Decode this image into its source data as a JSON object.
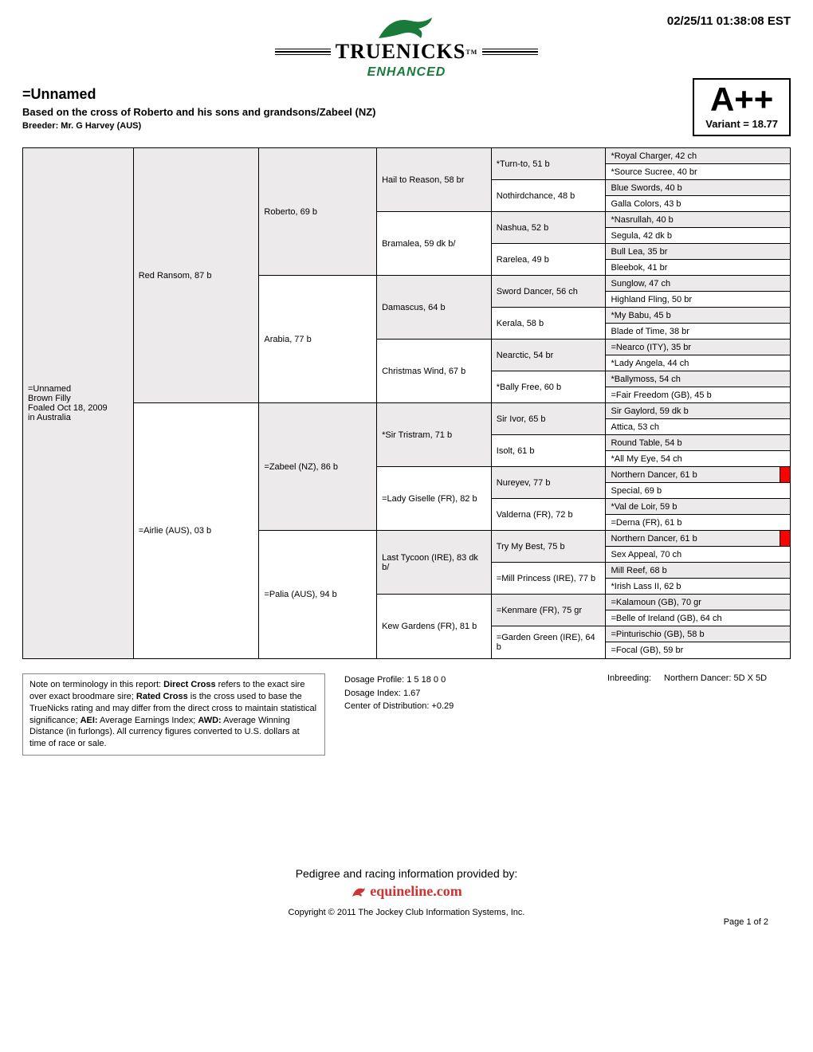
{
  "timestamp": "02/25/11 01:38:08 EST",
  "logo": {
    "main": "TRUENICKS",
    "sub": "ENHANCED",
    "tm": "TM"
  },
  "header": {
    "horse_name": "=Unnamed",
    "cross_line": "Based on the cross of Roberto and his sons and grandsons/Zabeel (NZ)",
    "breeder": "Breeder: Mr. G Harvey (AUS)"
  },
  "rating": {
    "grade": "A++",
    "variant": "Variant = 18.77"
  },
  "subject": {
    "line1": "=Unnamed",
    "line2": "Brown Filly",
    "line3": "Foaled Oct 18, 2009",
    "line4": "in Australia"
  },
  "pedigree": {
    "gen1": [
      "Red Ransom, 87 b",
      "=Airlie (AUS), 03 b"
    ],
    "gen2": [
      "Roberto, 69 b",
      "Arabia, 77 b",
      "=Zabeel (NZ), 86 b",
      "=Palia (AUS), 94 b"
    ],
    "gen3": [
      "Hail to Reason, 58 br",
      "Bramalea, 59 dk b/",
      "Damascus, 64 b",
      "Christmas Wind, 67 b",
      "*Sir Tristram, 71 b",
      "=Lady Giselle (FR), 82 b",
      "Last Tycoon (IRE), 83 dk b/",
      "Kew Gardens (FR), 81 b"
    ],
    "gen4": [
      "*Turn-to, 51 b",
      "Nothirdchance, 48 b",
      "Nashua, 52 b",
      "Rarelea, 49 b",
      "Sword Dancer, 56 ch",
      "Kerala, 58 b",
      "Nearctic, 54 br",
      "*Bally Free, 60 b",
      "Sir Ivor, 65 b",
      "Isolt, 61 b",
      "Nureyev, 77 b",
      "Valderna (FR), 72 b",
      "Try My Best, 75 b",
      "=Mill Princess (IRE), 77 b",
      "=Kenmare (FR), 75 gr",
      "=Garden Green (IRE), 64 b"
    ],
    "gen5": [
      "*Royal Charger, 42 ch",
      "*Source Sucree, 40 br",
      "Blue Swords, 40 b",
      "Galla Colors, 43 b",
      "*Nasrullah, 40 b",
      "Segula, 42 dk b",
      "Bull Lea, 35 br",
      "Bleebok, 41 br",
      "Sunglow, 47 ch",
      "Highland Fling, 50 br",
      "*My Babu, 45 b",
      "Blade of Time, 38 br",
      "=Nearco (ITY), 35 br",
      "*Lady Angela, 44 ch",
      "*Ballymoss, 54 ch",
      "=Fair Freedom (GB), 45 b",
      "Sir Gaylord, 59 dk b",
      "Attica, 53 ch",
      "Round Table, 54 b",
      "*All My Eye, 54 ch",
      "Northern Dancer, 61 b",
      "Special, 69 b",
      "*Val de Loir, 59 b",
      "=Derna (FR), 61 b",
      "Northern Dancer, 61 b",
      "Sex Appeal, 70 ch",
      "Mill Reef, 68 b",
      "*Irish Lass II, 62 b",
      "=Kalamoun (GB), 70 gr",
      "=Belle of Ireland (GB), 64 ch",
      "=Pinturischio (GB), 58 b",
      "=Focal (GB), 59 br"
    ],
    "gen5_highlight": [
      20,
      24
    ],
    "alt_bg_color": "#eceaea",
    "highlight_color": "#ff0000",
    "border_color": "#000000"
  },
  "notes": {
    "terminology": "Note on terminology in this report: Direct Cross refers to the exact sire over exact broodmare sire; Rated Cross is the cross used to base the TrueNicks rating and may differ from the direct cross to maintain statistical significance; AEI: Average Earnings Index; AWD: Average Winning Distance (in furlongs). All currency figures converted to U.S. dollars at time of race or sale.",
    "dosage_profile": "Dosage Profile: 1 5 18 0 0",
    "dosage_index": "Dosage Index: 1.67",
    "center_dist": "Center of Distribution: +0.29",
    "inbreeding_label": "Inbreeding:",
    "inbreeding_value": "Northern Dancer: 5D X 5D"
  },
  "provider": {
    "line": "Pedigree and racing information provided by:",
    "logo_text": "equineline.com"
  },
  "footer": {
    "copyright": "Copyright © 2011 The Jockey Club Information Systems, Inc.",
    "page": "Page 1 of 2"
  }
}
